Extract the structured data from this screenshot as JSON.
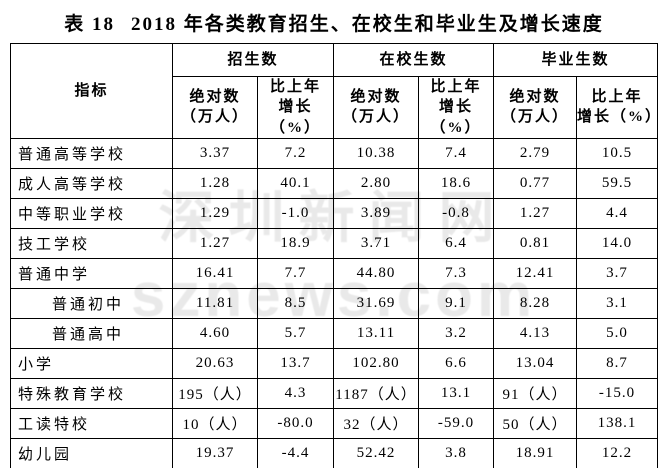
{
  "title": {
    "prefix": "表 18",
    "text": "2018 年各类教育招生、在校生和毕业生及增长速度"
  },
  "watermark": {
    "line1": "深圳新闻网",
    "line2": "sznews.com",
    "color": "#e9e9e9"
  },
  "table": {
    "indicator_header": "指标",
    "groups": [
      {
        "label": "招生数"
      },
      {
        "label": "在校生数"
      },
      {
        "label": "毕业生数"
      }
    ],
    "sub_header": {
      "absolute_line1": "绝对数",
      "absolute_line2": "（万人）",
      "growth_line1": "比上年",
      "growth_line2": "增长（%）"
    },
    "rows": [
      {
        "indicator": "普通高等学校",
        "indent": false,
        "values": [
          "3.37",
          "7.2",
          "10.38",
          "7.4",
          "2.79",
          "10.5"
        ]
      },
      {
        "indicator": "成人高等学校",
        "indent": false,
        "values": [
          "1.28",
          "40.1",
          "2.80",
          "18.6",
          "0.77",
          "59.5"
        ]
      },
      {
        "indicator": "中等职业学校",
        "indent": false,
        "values": [
          "1.29",
          "-1.0",
          "3.89",
          "-0.8",
          "1.27",
          "4.4"
        ]
      },
      {
        "indicator": "技工学校",
        "indent": false,
        "values": [
          "1.27",
          "18.9",
          "3.71",
          "6.4",
          "0.81",
          "14.0"
        ]
      },
      {
        "indicator": "普通中学",
        "indent": false,
        "values": [
          "16.41",
          "7.7",
          "44.80",
          "7.3",
          "12.41",
          "3.7"
        ]
      },
      {
        "indicator": "普通初中",
        "indent": true,
        "values": [
          "11.81",
          "8.5",
          "31.69",
          "9.1",
          "8.28",
          "3.1"
        ]
      },
      {
        "indicator": "普通高中",
        "indent": true,
        "values": [
          "4.60",
          "5.7",
          "13.11",
          "3.2",
          "4.13",
          "5.0"
        ]
      },
      {
        "indicator": "小学",
        "indent": false,
        "values": [
          "20.63",
          "13.7",
          "102.80",
          "6.6",
          "13.04",
          "8.7"
        ]
      },
      {
        "indicator": "特殊教育学校",
        "indent": false,
        "values": [
          "195（人）",
          "4.3",
          "1187（人）",
          "13.1",
          "91（人）",
          "-15.0"
        ]
      },
      {
        "indicator": "工读特校",
        "indent": false,
        "values": [
          "10（人）",
          "-80.0",
          "32（人）",
          "-59.0",
          "50（人）",
          "138.1"
        ]
      },
      {
        "indicator": "幼儿园",
        "indent": false,
        "values": [
          "19.37",
          "-4.4",
          "52.42",
          "3.8",
          "18.91",
          "12.2"
        ]
      }
    ]
  }
}
